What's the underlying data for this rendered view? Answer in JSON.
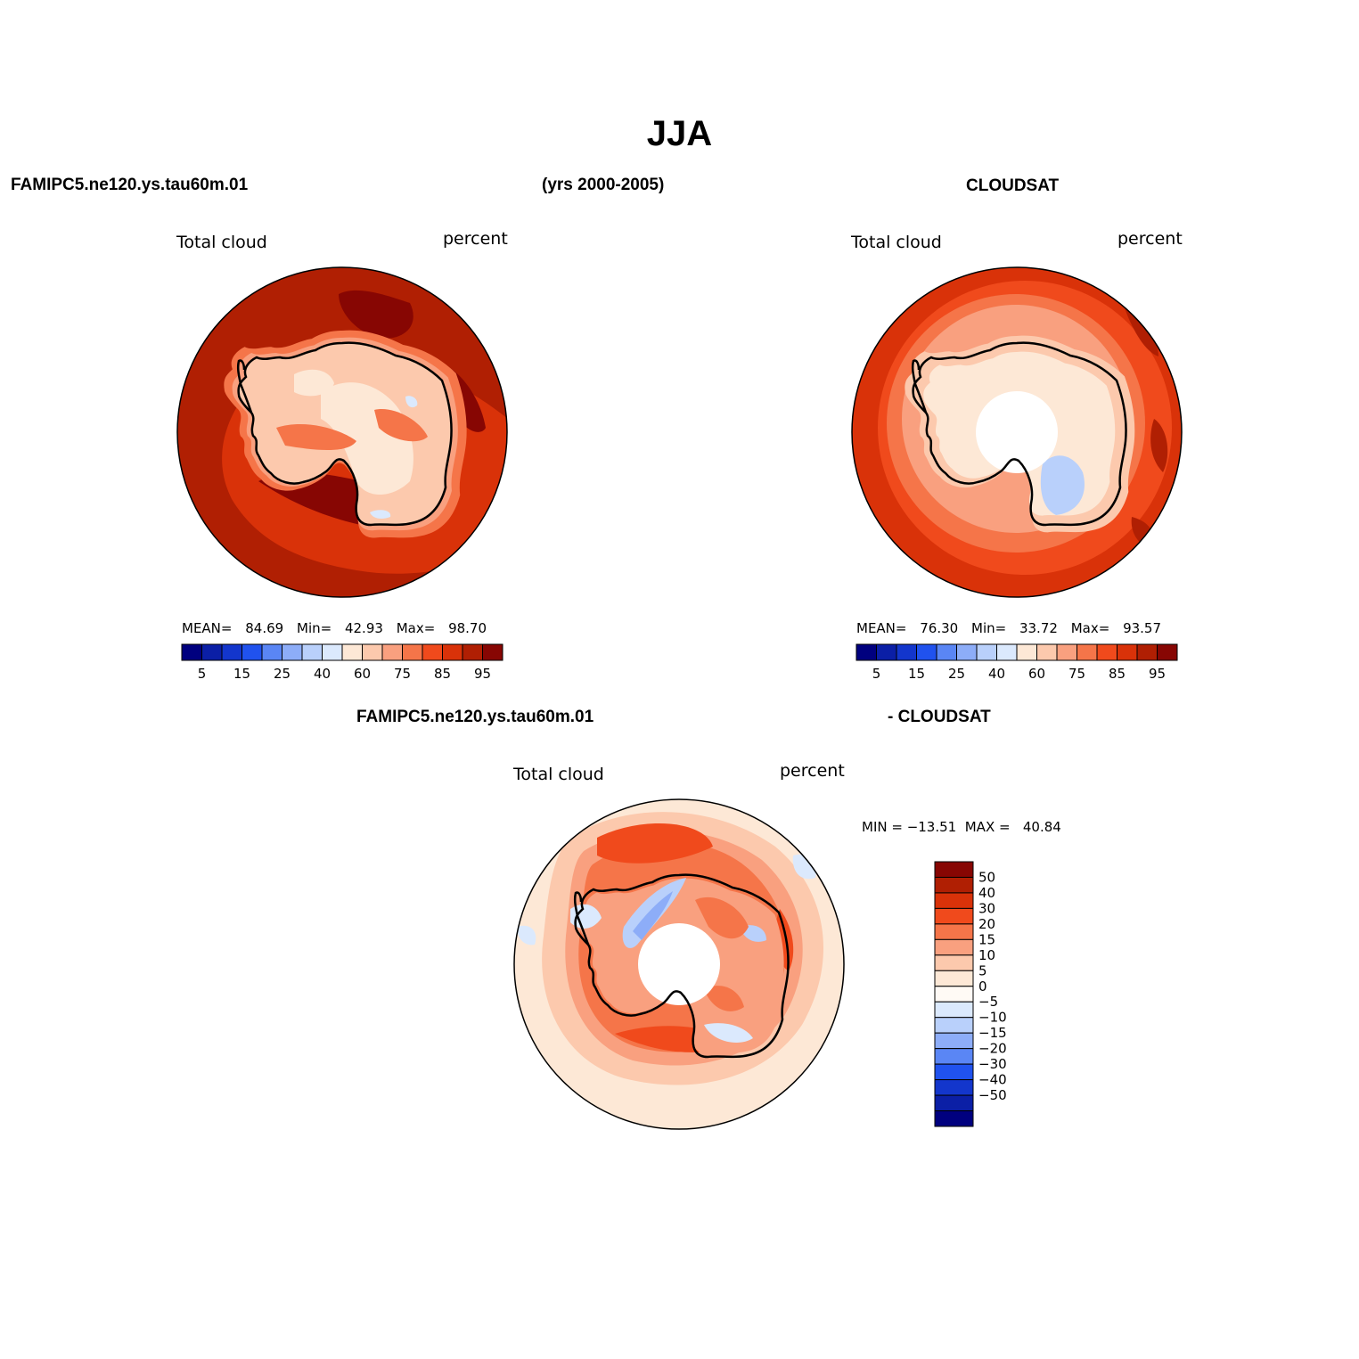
{
  "title": "JJA",
  "header": {
    "case_name": "FAMIPC5.ne120.ys.tau60m.01",
    "years": "(yrs 2000-2005)",
    "obs_name": "CLOUDSAT"
  },
  "panels": [
    {
      "variable": "Total cloud",
      "units": "percent",
      "stats": {
        "mean_label": "MEAN=",
        "mean": "84.69",
        "min_label": "Min=",
        "min": "42.93",
        "max_label": "Max=",
        "max": "98.70"
      }
    },
    {
      "variable": "Total cloud",
      "units": "percent",
      "stats": {
        "mean_label": "MEAN=",
        "mean": "76.30",
        "min_label": "Min=",
        "min": "33.72",
        "max_label": "Max=",
        "max": "93.57"
      }
    },
    {
      "variable": "Total cloud",
      "units": "percent",
      "title_left": "FAMIPC5.ne120.ys.tau60m.01",
      "title_right": "- CLOUDSAT",
      "stats_text": "MIN = −13.51  MAX =   40.84"
    }
  ],
  "colorbar_horizontal": {
    "colors": [
      "#00007f",
      "#0b1fa6",
      "#1336cc",
      "#2052ee",
      "#5a86f5",
      "#8dadf8",
      "#b9d0fb",
      "#dbe9fd",
      "#fde8d6",
      "#fcc9ad",
      "#f9a07f",
      "#f57549",
      "#f04a1c",
      "#d93209",
      "#b01f03",
      "#870603"
    ],
    "labels": [
      "5",
      "15",
      "25",
      "40",
      "60",
      "75",
      "85",
      "95"
    ]
  },
  "colorbar_vertical": {
    "colors_top_to_bottom": [
      "#870603",
      "#b01f03",
      "#d93209",
      "#f04a1c",
      "#f57549",
      "#f9a07f",
      "#fcc9ad",
      "#fde8d6",
      "#fffaf5",
      "#dbe9fd",
      "#b9d0fb",
      "#8dadf8",
      "#5a86f5",
      "#2052ee",
      "#1336cc",
      "#0b1fa6",
      "#00007f"
    ],
    "labels_top_to_bottom": [
      "50",
      "40",
      "30",
      "20",
      "15",
      "10",
      "5",
      "0",
      "−5",
      "−10",
      "−15",
      "−20",
      "−30",
      "−40",
      "−50"
    ]
  }
}
